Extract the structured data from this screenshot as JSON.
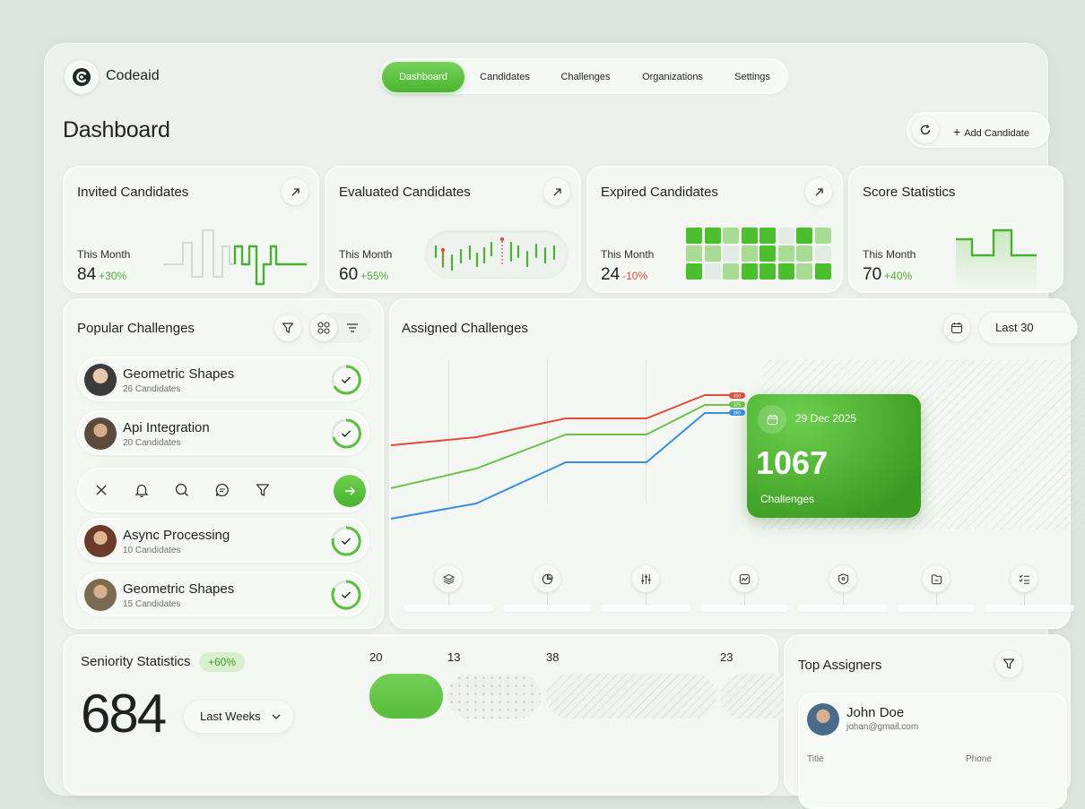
{
  "app": {
    "name": "Codeaid"
  },
  "nav": {
    "items": [
      "Dashboard",
      "Candidates",
      "Challenges",
      "Organizations",
      "Settings"
    ],
    "active": "Dashboard"
  },
  "page": {
    "title": "Dashboard"
  },
  "actions": {
    "add_label": "Add Candidate"
  },
  "stats": [
    {
      "title": "Invited Candidates",
      "period": "This Month",
      "value": "84",
      "change": "+30%",
      "trend": "up"
    },
    {
      "title": "Evaluated Candidates",
      "period": "This Month",
      "value": "60",
      "change": "+55%",
      "trend": "up"
    },
    {
      "title": "Expired Candidates",
      "period": "This Month",
      "value": "24",
      "change": "-10%",
      "trend": "down"
    },
    {
      "title": "Score Statistics",
      "period": "This Month",
      "value": "70",
      "change": "+40%",
      "trend": "up"
    }
  ],
  "popular": {
    "title": "Popular Challenges",
    "items": [
      {
        "name": "Geometric Shapes",
        "count": "26 Candidates"
      },
      {
        "name": "Api Integration",
        "count": "20 Candidates"
      },
      {
        "name": "Async Processing",
        "count": "10 Candidates"
      },
      {
        "name": "Geometric Shapes",
        "count": "15 Candidates"
      }
    ]
  },
  "assigned": {
    "title": "Assigned Challenges",
    "range_label": "Last 30",
    "tooltip": {
      "date": "29 Dec 2025",
      "value": "1067",
      "label": "Challenges"
    },
    "markers": [
      "400",
      "375",
      "360"
    ]
  },
  "seniority": {
    "title": "Seniority Statistics",
    "badge": "+60%",
    "value": "684",
    "period": "Last Weeks",
    "segments": [
      "20",
      "13",
      "38",
      "23"
    ]
  },
  "assigners": {
    "title": "Top Assigners",
    "person": {
      "name": "John Doe",
      "email": "johan@gmail.com",
      "title_label": "Title",
      "phone_label": "Phone"
    }
  },
  "colors": {
    "accent": "#4caf32",
    "red": "#e24b3a",
    "blue": "#3a8ee0",
    "green_line": "#6cc24a"
  }
}
